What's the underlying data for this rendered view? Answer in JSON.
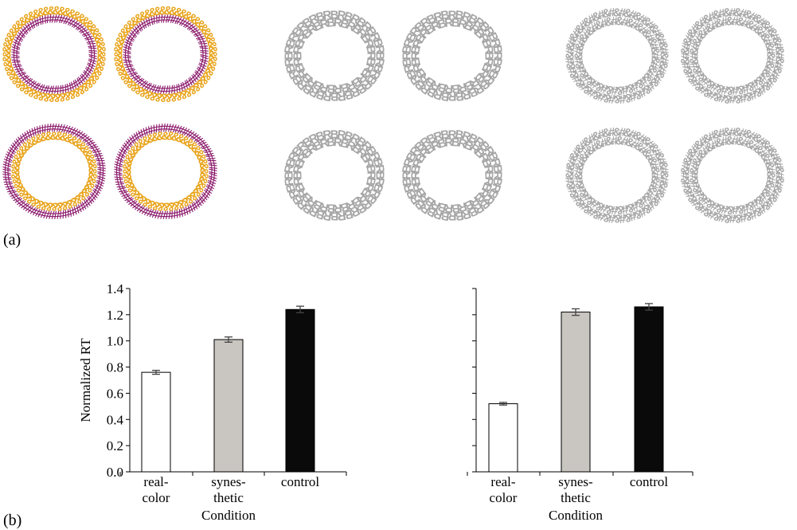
{
  "panel_labels": {
    "a": "(a)",
    "b": "(b)"
  },
  "colors": {
    "purple": "#8b1a6b",
    "gold": "#e8a51e",
    "gray_glyph": "#a6a6a6",
    "bar_white": "#ffffff",
    "bar_gray": "#c9c5c1",
    "bar_black": "#0a0a0a"
  },
  "stimuli": {
    "colored": {
      "outer": "&",
      "inner": "#",
      "note": ""
    },
    "letters_block": {
      "glyphs": [
        "B",
        "R"
      ]
    },
    "symbols_block": {
      "glyphs": [
        "&",
        "#"
      ]
    }
  },
  "chart_data": [
    {
      "type": "bar",
      "categories": [
        "real-color",
        "synes-thetic",
        "control"
      ],
      "category_lines": [
        [
          "real-",
          "color"
        ],
        [
          "synes-",
          "thetic"
        ],
        [
          "control"
        ]
      ],
      "values": [
        0.76,
        1.01,
        1.24
      ],
      "errors": [
        0.015,
        0.02,
        0.025
      ],
      "bar_colors": [
        "#ffffff",
        "#c9c5c1",
        "#0a0a0a"
      ],
      "ylabel": "Normalized RT",
      "xlabel": "Condition",
      "ylim": [
        0,
        1.4
      ],
      "yticks": [
        "0.0",
        "0.2",
        "0.4",
        "0.6",
        "0.8",
        "1.0",
        "1.2",
        "1.4"
      ],
      "show_ytick_labels": true
    },
    {
      "type": "bar",
      "categories": [
        "real-color",
        "synes-thetic",
        "control"
      ],
      "category_lines": [
        [
          "real-",
          "color"
        ],
        [
          "synes-",
          "thetic"
        ],
        [
          "control"
        ]
      ],
      "values": [
        0.52,
        1.22,
        1.26
      ],
      "errors": [
        0.01,
        0.025,
        0.025
      ],
      "bar_colors": [
        "#ffffff",
        "#c9c5c1",
        "#0a0a0a"
      ],
      "ylabel": "",
      "xlabel": "Condition",
      "ylim": [
        0,
        1.4
      ],
      "yticks": [
        "",
        "",
        "",
        "",
        "",
        "",
        "",
        ""
      ],
      "show_ytick_labels": false
    }
  ]
}
